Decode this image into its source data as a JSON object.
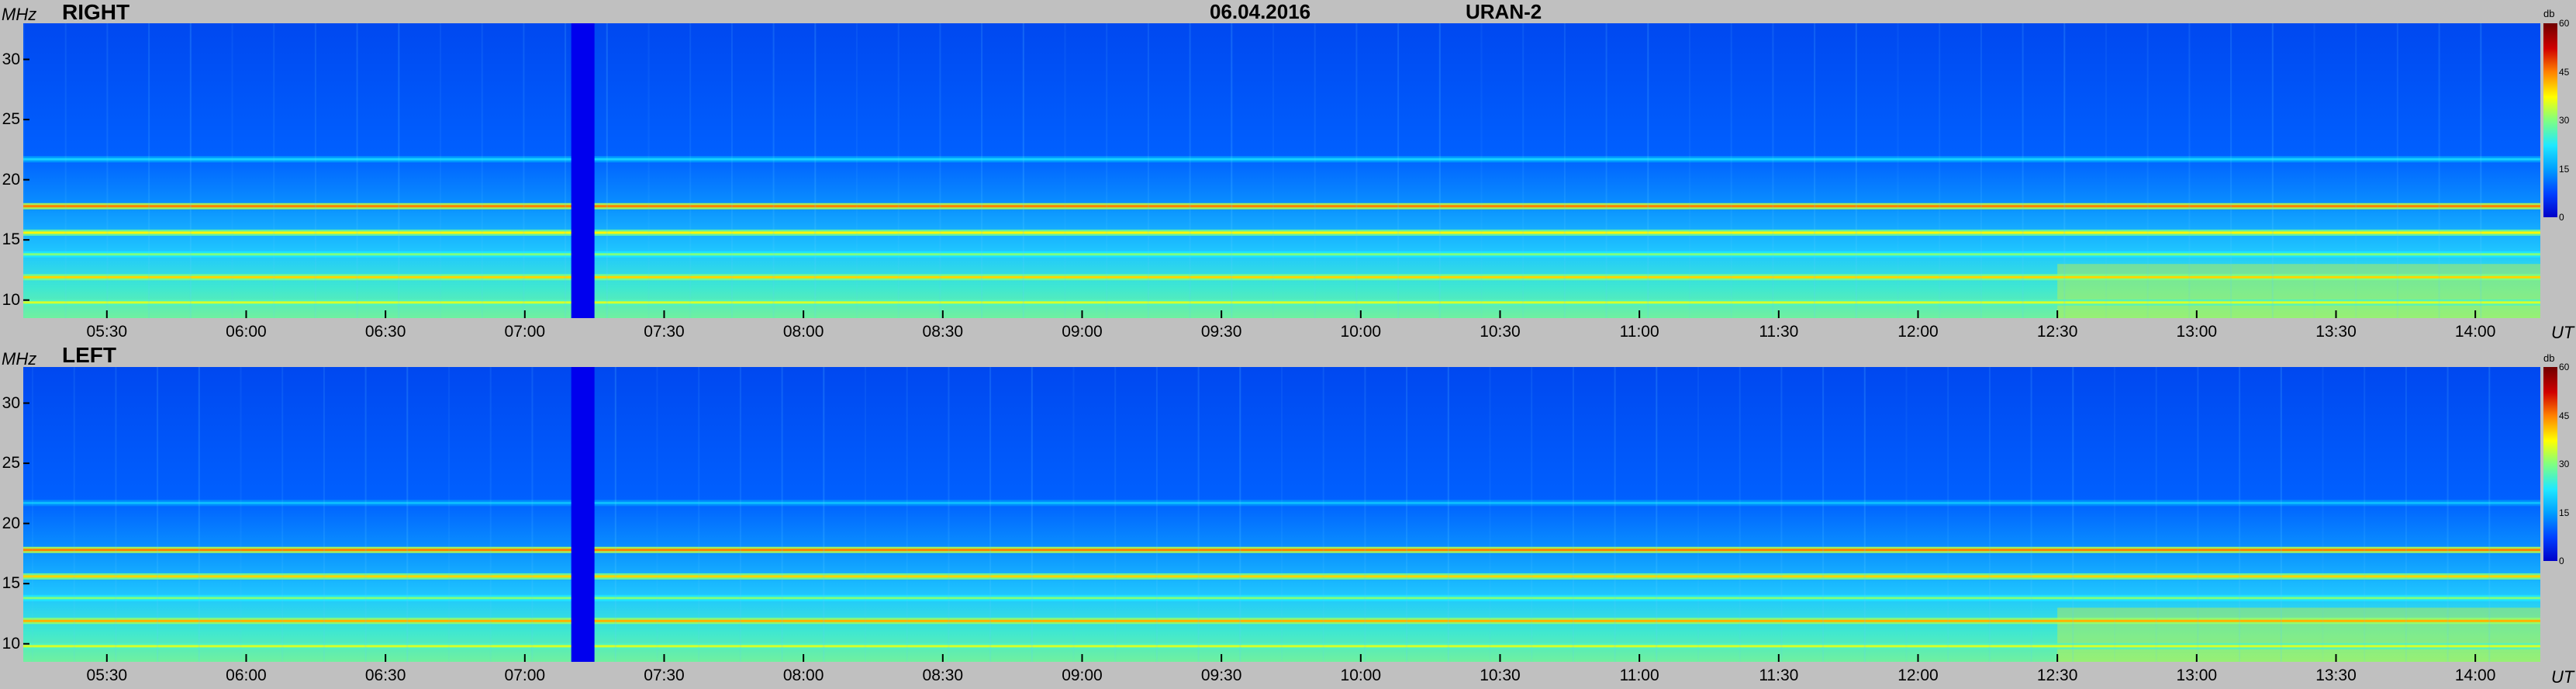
{
  "header": {
    "date": "06.04.2016",
    "station": "URAN-2",
    "freq_unit": "MHz",
    "time_unit": "UT"
  },
  "colors": {
    "background": "#c0c0c0",
    "gap_band": "#0000ee",
    "colormap": [
      "#0000c8",
      "#0040ff",
      "#00a0ff",
      "#20e8ff",
      "#80ff80",
      "#ffff00",
      "#ff8000",
      "#d00000",
      "#700000"
    ]
  },
  "colorbar": {
    "unit": "db",
    "ticks": [
      "60",
      "45",
      "30",
      "15",
      "0"
    ]
  },
  "chart_data": [
    {
      "type": "heatmap",
      "title": "RIGHT",
      "ylabel": "MHz",
      "xlabel": "UT",
      "ylim": [
        8.5,
        33
      ],
      "yticks": [
        "30",
        "25",
        "20",
        "15",
        "10"
      ],
      "xticks": [
        "05:30",
        "06:00",
        "06:30",
        "07:00",
        "07:30",
        "08:00",
        "08:30",
        "09:00",
        "09:30",
        "10:00",
        "10:30",
        "11:00",
        "11:30",
        "12:00",
        "12:30",
        "13:00",
        "13:30",
        "14:00"
      ],
      "xlim": [
        "05:12",
        "14:14"
      ],
      "color_range_db": [
        0,
        60
      ],
      "data_gap": [
        "07:10",
        "07:15"
      ],
      "interference_bands_mhz": [
        {
          "freq": 21.7,
          "level_db": 20
        },
        {
          "freq": 17.8,
          "level_db": 45
        },
        {
          "freq": 15.6,
          "level_db": 38
        },
        {
          "freq": 13.8,
          "level_db": 30
        },
        {
          "freq": 11.9,
          "level_db": 40
        },
        {
          "freq": 9.8,
          "level_db": 35
        }
      ]
    },
    {
      "type": "heatmap",
      "title": "LEFT",
      "ylabel": "MHz",
      "xlabel": "UT",
      "ylim": [
        8.5,
        33
      ],
      "yticks": [
        "30",
        "25",
        "20",
        "15",
        "10"
      ],
      "xticks": [
        "05:30",
        "06:00",
        "06:30",
        "07:00",
        "07:30",
        "08:00",
        "08:30",
        "09:00",
        "09:30",
        "10:00",
        "10:30",
        "11:00",
        "11:30",
        "12:00",
        "12:30",
        "13:00",
        "13:30",
        "14:00"
      ],
      "xlim": [
        "05:12",
        "14:14"
      ],
      "color_range_db": [
        0,
        60
      ],
      "data_gap": [
        "07:10",
        "07:15"
      ],
      "interference_bands_mhz": [
        {
          "freq": 21.7,
          "level_db": 18
        },
        {
          "freq": 17.8,
          "level_db": 45
        },
        {
          "freq": 15.6,
          "level_db": 40
        },
        {
          "freq": 13.8,
          "level_db": 30
        },
        {
          "freq": 11.9,
          "level_db": 42
        },
        {
          "freq": 9.8,
          "level_db": 35
        }
      ]
    }
  ]
}
